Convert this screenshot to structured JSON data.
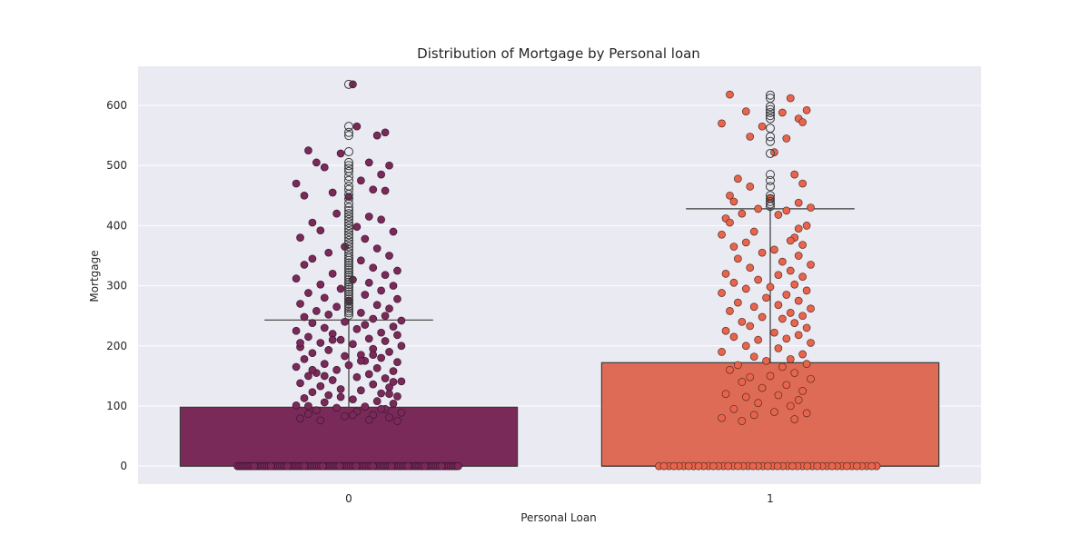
{
  "chart_data": {
    "type": "box",
    "title": "Distribution of Mortgage by Personal loan",
    "xlabel": "Personal Loan",
    "ylabel": "Mortgage",
    "categories": [
      "0",
      "1"
    ],
    "ylim": [
      -30,
      665
    ],
    "yticks": [
      0,
      100,
      200,
      300,
      400,
      500,
      600
    ],
    "grid": true,
    "background": "#eaeaf2",
    "boxes": [
      {
        "category": "0",
        "q1": 0,
        "median": 0,
        "q3": 98,
        "whisker_low": 0,
        "whisker_high": 243,
        "box_color": "#7a2a58",
        "point_color": "#7a2a58",
        "point_edge_color": "#3d1530",
        "outliers": [
          251,
          255,
          258,
          262,
          266,
          270,
          274,
          278,
          282,
          286,
          290,
          294,
          298,
          302,
          306,
          310,
          314,
          318,
          322,
          326,
          330,
          334,
          338,
          342,
          346,
          350,
          355,
          360,
          365,
          370,
          375,
          380,
          385,
          390,
          395,
          400,
          405,
          410,
          415,
          420,
          425,
          430,
          437,
          445,
          452,
          460,
          466,
          475,
          482,
          490,
          495,
          500,
          505,
          523,
          550,
          555,
          565,
          635
        ],
        "jitter_points": [
          [
            0.01,
            635
          ],
          [
            -0.1,
            525
          ],
          [
            -0.02,
            520
          ],
          [
            0.07,
            550
          ],
          [
            0.09,
            555
          ],
          [
            0.02,
            565
          ],
          [
            -0.08,
            505
          ],
          [
            0.05,
            505
          ],
          [
            0.1,
            500
          ],
          [
            -0.06,
            497
          ],
          [
            0.08,
            485
          ],
          [
            -0.13,
            470
          ],
          [
            0.03,
            475
          ],
          [
            -0.04,
            455
          ],
          [
            0.06,
            460
          ],
          [
            0.09,
            458
          ],
          [
            -0.11,
            450
          ],
          [
            0.0,
            448
          ],
          [
            -0.03,
            420
          ],
          [
            0.05,
            415
          ],
          [
            -0.09,
            405
          ],
          [
            0.08,
            410
          ],
          [
            -0.07,
            392
          ],
          [
            0.02,
            398
          ],
          [
            0.11,
            390
          ],
          [
            -0.12,
            380
          ],
          [
            0.04,
            378
          ],
          [
            -0.01,
            365
          ],
          [
            0.07,
            362
          ],
          [
            -0.05,
            355
          ],
          [
            0.1,
            350
          ],
          [
            -0.09,
            345
          ],
          [
            0.03,
            342
          ],
          [
            -0.11,
            335
          ],
          [
            0.06,
            330
          ],
          [
            0.12,
            325
          ],
          [
            -0.04,
            320
          ],
          [
            0.09,
            318
          ],
          [
            -0.13,
            312
          ],
          [
            0.01,
            310
          ],
          [
            0.05,
            305
          ],
          [
            -0.07,
            302
          ],
          [
            0.11,
            300
          ],
          [
            -0.02,
            295
          ],
          [
            0.08,
            292
          ],
          [
            -0.1,
            288
          ],
          [
            0.04,
            285
          ],
          [
            -0.06,
            280
          ],
          [
            0.12,
            278
          ],
          [
            0.0,
            275
          ],
          [
            -0.12,
            270
          ],
          [
            0.07,
            268
          ],
          [
            -0.03,
            265
          ],
          [
            0.1,
            262
          ],
          [
            -0.08,
            258
          ],
          [
            0.03,
            255
          ],
          [
            -0.05,
            252
          ],
          [
            0.09,
            250
          ],
          [
            -0.11,
            248
          ],
          [
            0.06,
            245
          ],
          [
            0.13,
            242
          ],
          [
            -0.01,
            240
          ],
          [
            -0.09,
            238
          ],
          [
            0.04,
            235
          ],
          [
            0.11,
            232
          ],
          [
            -0.06,
            230
          ],
          [
            0.02,
            228
          ],
          [
            -0.13,
            225
          ],
          [
            0.08,
            222
          ],
          [
            -0.04,
            220
          ],
          [
            0.12,
            218
          ],
          [
            -0.1,
            215
          ],
          [
            0.05,
            212
          ],
          [
            -0.02,
            210
          ],
          [
            0.09,
            208
          ],
          [
            -0.07,
            205
          ],
          [
            0.01,
            203
          ],
          [
            0.13,
            200
          ],
          [
            -0.12,
            198
          ],
          [
            0.06,
            195
          ],
          [
            -0.05,
            193
          ],
          [
            0.1,
            190
          ],
          [
            -0.09,
            188
          ],
          [
            0.03,
            185
          ],
          [
            -0.01,
            183
          ],
          [
            0.08,
            180
          ],
          [
            -0.11,
            178
          ],
          [
            0.04,
            175
          ],
          [
            0.12,
            173
          ],
          [
            -0.06,
            170
          ],
          [
            0.0,
            168
          ],
          [
            -0.13,
            165
          ],
          [
            0.07,
            163
          ],
          [
            -0.03,
            160
          ],
          [
            0.11,
            158
          ],
          [
            -0.08,
            155
          ],
          [
            0.05,
            153
          ],
          [
            -0.1,
            150
          ],
          [
            0.02,
            148
          ],
          [
            0.09,
            146
          ],
          [
            -0.04,
            143
          ],
          [
            0.13,
            141
          ],
          [
            -0.12,
            138
          ],
          [
            0.06,
            136
          ],
          [
            -0.07,
            133
          ],
          [
            0.1,
            131
          ],
          [
            -0.02,
            128
          ],
          [
            0.03,
            126
          ],
          [
            -0.09,
            123
          ],
          [
            0.08,
            121
          ],
          [
            -0.05,
            118
          ],
          [
            0.12,
            116
          ],
          [
            -0.11,
            113
          ],
          [
            0.01,
            111
          ],
          [
            0.07,
            108
          ],
          [
            -0.06,
            106
          ],
          [
            0.11,
            104
          ],
          [
            -0.13,
            101
          ],
          [
            0.04,
            99
          ],
          [
            -0.03,
            97
          ],
          [
            0.09,
            95
          ],
          [
            -0.08,
            93
          ],
          [
            0.02,
            91
          ],
          [
            0.13,
            89
          ],
          [
            -0.1,
            87
          ],
          [
            0.06,
            85
          ],
          [
            -0.01,
            83
          ],
          [
            0.1,
            81
          ],
          [
            -0.12,
            79
          ],
          [
            0.05,
            77
          ],
          [
            -0.07,
            76
          ],
          [
            0.12,
            75
          ],
          [
            -0.04,
            210
          ],
          [
            0.06,
            185
          ],
          [
            -0.09,
            160
          ],
          [
            0.11,
            140
          ],
          [
            -0.02,
            115
          ],
          [
            0.08,
            95
          ],
          [
            -0.12,
            205
          ],
          [
            0.03,
            175
          ],
          [
            -0.06,
            150
          ],
          [
            0.1,
            120
          ],
          [
            -0.1,
            100
          ],
          [
            0.01,
            85
          ]
        ],
        "zero_count": 120
      },
      {
        "category": "1",
        "q1": 0,
        "median": 0,
        "q3": 172,
        "whisker_low": 0,
        "whisker_high": 428,
        "box_color": "#dd6b56",
        "point_color": "#e8654d",
        "point_edge_color": "#5a2a20",
        "outliers": [
          432,
          436,
          440,
          445,
          450,
          465,
          475,
          485,
          520,
          540,
          548,
          562,
          578,
          583,
          588,
          593,
          598,
          612,
          617
        ],
        "jitter_points": [
          [
            -0.1,
            618
          ],
          [
            0.05,
            612
          ],
          [
            -0.06,
            590
          ],
          [
            0.09,
            592
          ],
          [
            0.03,
            588
          ],
          [
            -0.12,
            570
          ],
          [
            0.07,
            578
          ],
          [
            0.08,
            572
          ],
          [
            -0.02,
            565
          ],
          [
            0.04,
            545
          ],
          [
            -0.05,
            548
          ],
          [
            0.01,
            522
          ],
          [
            0.06,
            485
          ],
          [
            -0.08,
            478
          ],
          [
            0.08,
            470
          ],
          [
            -0.05,
            465
          ],
          [
            -0.1,
            450
          ],
          [
            0.0,
            445
          ],
          [
            -0.09,
            440
          ],
          [
            0.07,
            438
          ],
          [
            0.1,
            430
          ],
          [
            -0.03,
            428
          ],
          [
            0.04,
            425
          ],
          [
            -0.07,
            420
          ],
          [
            0.02,
            418
          ],
          [
            -0.11,
            412
          ],
          [
            0.09,
            400
          ],
          [
            -0.1,
            405
          ],
          [
            0.07,
            395
          ],
          [
            -0.04,
            390
          ],
          [
            -0.12,
            385
          ],
          [
            0.06,
            380
          ],
          [
            0.05,
            375
          ],
          [
            -0.06,
            372
          ],
          [
            0.08,
            368
          ],
          [
            -0.09,
            365
          ],
          [
            0.01,
            360
          ],
          [
            -0.02,
            355
          ],
          [
            0.07,
            350
          ],
          [
            -0.08,
            345
          ],
          [
            0.03,
            340
          ],
          [
            0.1,
            335
          ],
          [
            -0.05,
            330
          ],
          [
            0.05,
            325
          ],
          [
            -0.11,
            320
          ],
          [
            0.02,
            318
          ],
          [
            0.08,
            315
          ],
          [
            -0.03,
            310
          ],
          [
            -0.09,
            305
          ],
          [
            0.06,
            302
          ],
          [
            0.0,
            298
          ],
          [
            -0.06,
            295
          ],
          [
            0.09,
            292
          ],
          [
            -0.12,
            288
          ],
          [
            0.04,
            285
          ],
          [
            -0.01,
            280
          ],
          [
            0.07,
            275
          ],
          [
            -0.08,
            272
          ],
          [
            0.02,
            268
          ],
          [
            -0.04,
            265
          ],
          [
            0.1,
            262
          ],
          [
            -0.1,
            258
          ],
          [
            0.05,
            255
          ],
          [
            0.08,
            250
          ],
          [
            -0.02,
            248
          ],
          [
            0.03,
            245
          ],
          [
            -0.07,
            240
          ],
          [
            0.06,
            238
          ],
          [
            -0.05,
            233
          ],
          [
            0.09,
            230
          ],
          [
            -0.11,
            225
          ],
          [
            0.01,
            222
          ],
          [
            0.07,
            218
          ],
          [
            -0.09,
            215
          ],
          [
            0.04,
            212
          ],
          [
            -0.03,
            210
          ],
          [
            0.1,
            205
          ],
          [
            -0.06,
            200
          ],
          [
            0.02,
            196
          ],
          [
            -0.12,
            190
          ],
          [
            0.08,
            186
          ],
          [
            -0.04,
            182
          ],
          [
            0.05,
            178
          ],
          [
            -0.01,
            175
          ],
          [
            0.09,
            170
          ],
          [
            -0.08,
            168
          ],
          [
            0.03,
            165
          ],
          [
            -0.1,
            160
          ],
          [
            0.06,
            155
          ],
          [
            0.0,
            150
          ],
          [
            -0.05,
            148
          ],
          [
            0.1,
            145
          ],
          [
            -0.07,
            140
          ],
          [
            0.04,
            135
          ],
          [
            -0.02,
            130
          ],
          [
            0.08,
            125
          ],
          [
            -0.11,
            120
          ],
          [
            0.02,
            118
          ],
          [
            -0.06,
            115
          ],
          [
            0.07,
            110
          ],
          [
            -0.03,
            105
          ],
          [
            0.05,
            100
          ],
          [
            -0.09,
            95
          ],
          [
            0.01,
            90
          ],
          [
            0.09,
            88
          ],
          [
            -0.04,
            85
          ],
          [
            -0.12,
            80
          ],
          [
            0.06,
            78
          ],
          [
            -0.07,
            75
          ]
        ],
        "zero_count": 45
      }
    ]
  }
}
